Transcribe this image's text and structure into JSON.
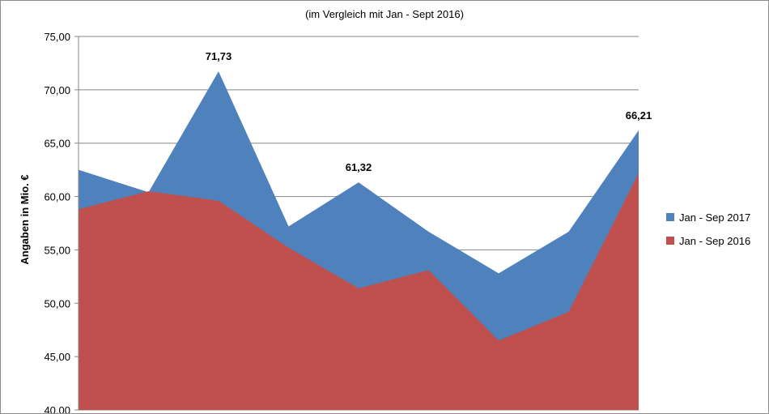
{
  "chart_data": {
    "type": "area",
    "subtitle": "(im Vergleich mit Jan - Sept 2016)",
    "ylabel": "Angaben in Mio. €",
    "ylim": [
      40,
      75
    ],
    "yticks": [
      "40,00",
      "45,00",
      "50,00",
      "55,00",
      "60,00",
      "65,00",
      "70,00",
      "75,00"
    ],
    "ytick_values": [
      40,
      45,
      50,
      55,
      60,
      65,
      70,
      75
    ],
    "grid": true,
    "legend_position": "right",
    "series": [
      {
        "name": "Jan - Sep 2017",
        "color": "#4f81bd",
        "values": [
          62.5,
          60.4,
          71.73,
          57.2,
          61.32,
          56.7,
          52.8,
          56.7,
          66.21
        ]
      },
      {
        "name": "Jan - Sep 2016",
        "color": "#c0504d",
        "values": [
          58.8,
          60.5,
          59.6,
          55.2,
          51.4,
          53.1,
          46.5,
          49.2,
          62.2
        ]
      }
    ],
    "data_labels": [
      {
        "series": 0,
        "index": 2,
        "text": "71,73"
      },
      {
        "series": 0,
        "index": 4,
        "text": "61,32"
      },
      {
        "series": 0,
        "index": 8,
        "text": "66,21"
      }
    ]
  }
}
